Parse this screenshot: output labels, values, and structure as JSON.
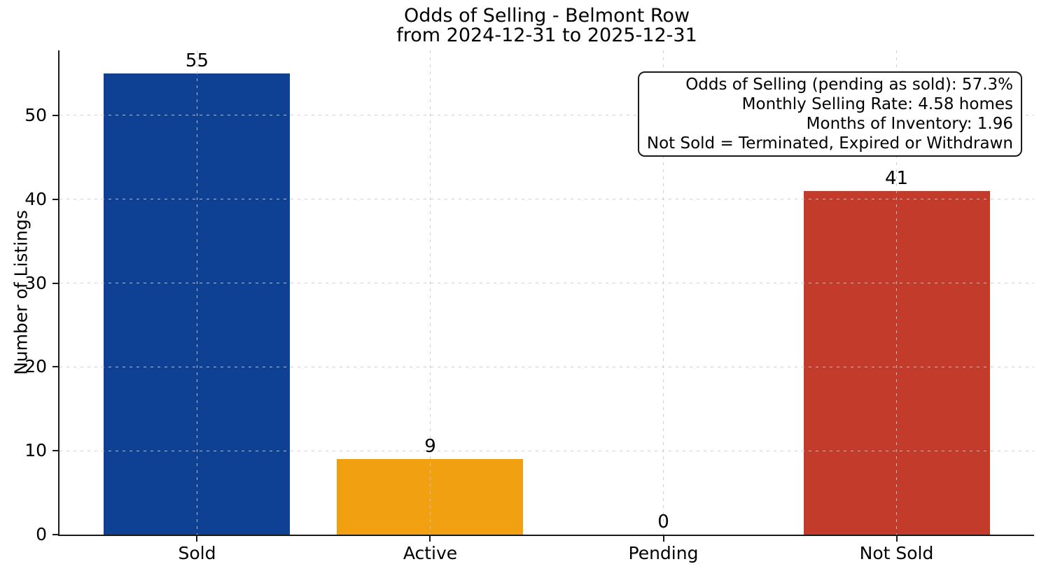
{
  "figure": {
    "title_line1": "Odds of Selling - Belmont Row",
    "title_line2": "from 2024-12-31 to 2025-12-31",
    "ylabel": "Number of Listings"
  },
  "annotation_box": {
    "lines": [
      "Odds of Selling (pending as sold): 57.3%",
      "Monthly Selling Rate: 4.58 homes",
      "Months of Inventory: 1.96",
      "Not Sold = Terminated, Expired or Withdrawn"
    ]
  },
  "colors": {
    "sold_bar": "#0e4093",
    "active_bar": "#f1a011",
    "not_sold_bar": "#c23b2b",
    "spine": "#1a1a1a",
    "grid": "#cbcbcb",
    "text": "#000000",
    "background": "#ffffff"
  },
  "chart_data": {
    "type": "bar",
    "title": "Odds of Selling - Belmont Row\nfrom 2024-12-31 to 2025-12-31",
    "categories": [
      "Sold",
      "Active",
      "Pending",
      "Not Sold"
    ],
    "values": [
      55,
      9,
      0,
      41
    ],
    "value_labels": [
      "55",
      "9",
      "0",
      "41"
    ],
    "bar_colors": [
      "#0e4093",
      "#f1a011",
      null,
      "#c23b2b"
    ],
    "xlabel": "",
    "ylabel": "Number of Listings",
    "ylim": [
      0,
      57.75
    ],
    "yticks": [
      0,
      10,
      20,
      30,
      40,
      50
    ],
    "grid": {
      "visible": true,
      "axis": "both",
      "style": "dashed"
    },
    "annotation_position": "upper right",
    "annotations": [
      "Odds of Selling (pending as sold): 57.3%",
      "Monthly Selling Rate: 4.58 homes",
      "Months of Inventory: 1.96",
      "Not Sold = Terminated, Expired or Withdrawn"
    ]
  }
}
